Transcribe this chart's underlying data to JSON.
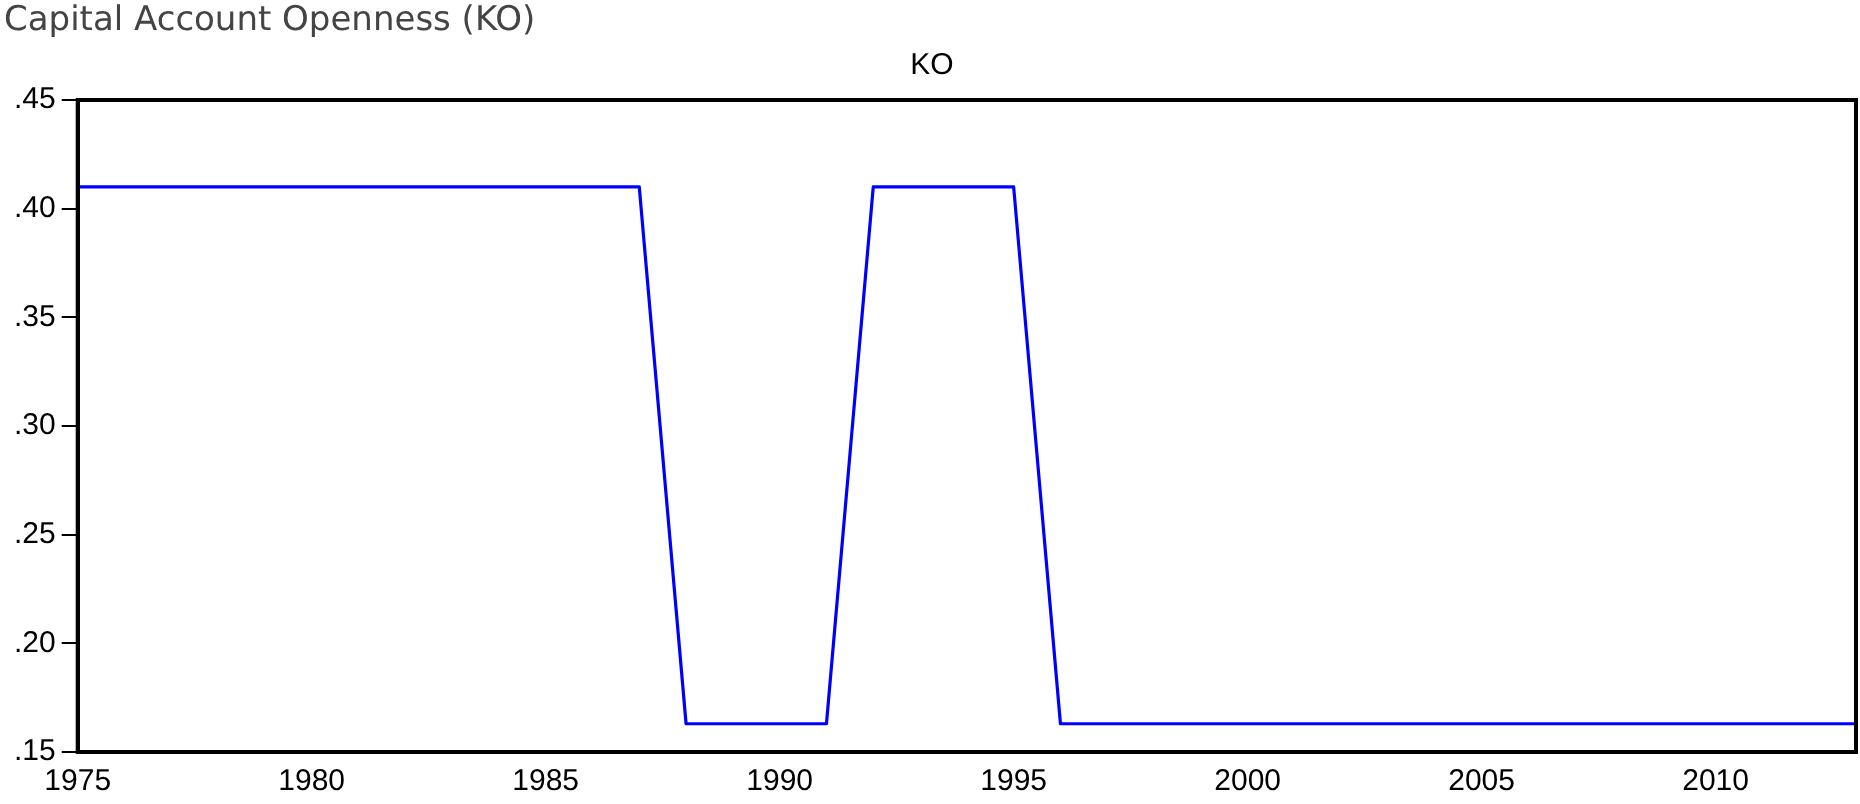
{
  "chart_data": {
    "type": "line",
    "title": "Capital Account Openness (KO)",
    "subtitle": "KO",
    "x": [
      1975,
      1976,
      1977,
      1978,
      1979,
      1980,
      1981,
      1982,
      1983,
      1984,
      1985,
      1986,
      1987,
      1988,
      1989,
      1990,
      1991,
      1992,
      1993,
      1994,
      1995,
      1996,
      1997,
      1998,
      1999,
      2000,
      2001,
      2002,
      2003,
      2004,
      2005,
      2006,
      2007,
      2008,
      2009,
      2010,
      2011,
      2012,
      2013
    ],
    "series": [
      {
        "color": "#0000ff",
        "values": [
          0.41,
          0.41,
          0.41,
          0.41,
          0.41,
          0.41,
          0.41,
          0.41,
          0.41,
          0.41,
          0.41,
          0.41,
          0.41,
          0.163,
          0.163,
          0.163,
          0.163,
          0.41,
          0.41,
          0.41,
          0.41,
          0.163,
          0.163,
          0.163,
          0.163,
          0.163,
          0.163,
          0.163,
          0.163,
          0.163,
          0.163,
          0.163,
          0.163,
          0.163,
          0.163,
          0.163,
          0.163,
          0.163,
          0.163
        ]
      }
    ],
    "xlim": [
      1975,
      2013
    ],
    "xticks": [
      1975,
      1980,
      1985,
      1990,
      1995,
      2000,
      2005,
      2010
    ],
    "ylim": [
      0.15,
      0.45
    ],
    "yticks": [
      {
        "value": 0.15,
        "label": ".15"
      },
      {
        "value": 0.2,
        "label": ".20"
      },
      {
        "value": 0.25,
        "label": ".25"
      },
      {
        "value": 0.3,
        "label": ".30"
      },
      {
        "value": 0.35,
        "label": ".35"
      },
      {
        "value": 0.4,
        "label": ".40"
      },
      {
        "value": 0.45,
        "label": ".45"
      }
    ],
    "grid": false,
    "legend": false,
    "marker": "none",
    "line_style": "solid"
  }
}
